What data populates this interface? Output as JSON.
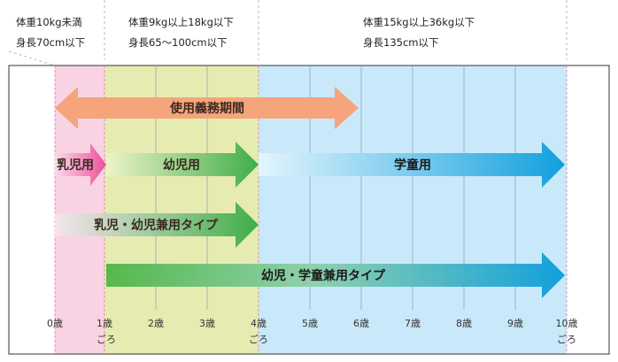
{
  "headers": {
    "infant": {
      "line1": "体重10kg未満",
      "line2": "身長70cm以下"
    },
    "toddler": {
      "line1": "体重9kg以上18kg以下",
      "line2": "身長65〜100cm以下"
    },
    "child": {
      "line1": "体重15kg以上36kg以下",
      "line2": "身長135cm以下"
    }
  },
  "bars": {
    "mandatory": "使用義務期間",
    "infant": "乳児用",
    "toddler": "幼児用",
    "school": "学童用",
    "infant_toddler": "乳児・幼児兼用タイプ",
    "toddler_school": "幼児・学童兼用タイプ"
  },
  "axis": {
    "ticks": [
      "0歳",
      "1歳",
      "2歳",
      "3歳",
      "4歳",
      "5歳",
      "6歳",
      "7歳",
      "8歳",
      "9歳",
      "10歳"
    ],
    "approx_label": "ごろ"
  },
  "colors": {
    "infant_zone": "#f9d3e3",
    "toddler_zone": "#e6ecb1",
    "school_zone": "#c9e9fa",
    "mandatory_arrow": "#f6a47c",
    "infant_arrow": "#ec4f9a",
    "toddler_arrow": "#3fae49",
    "school_arrow": "#1aa5e0"
  }
}
